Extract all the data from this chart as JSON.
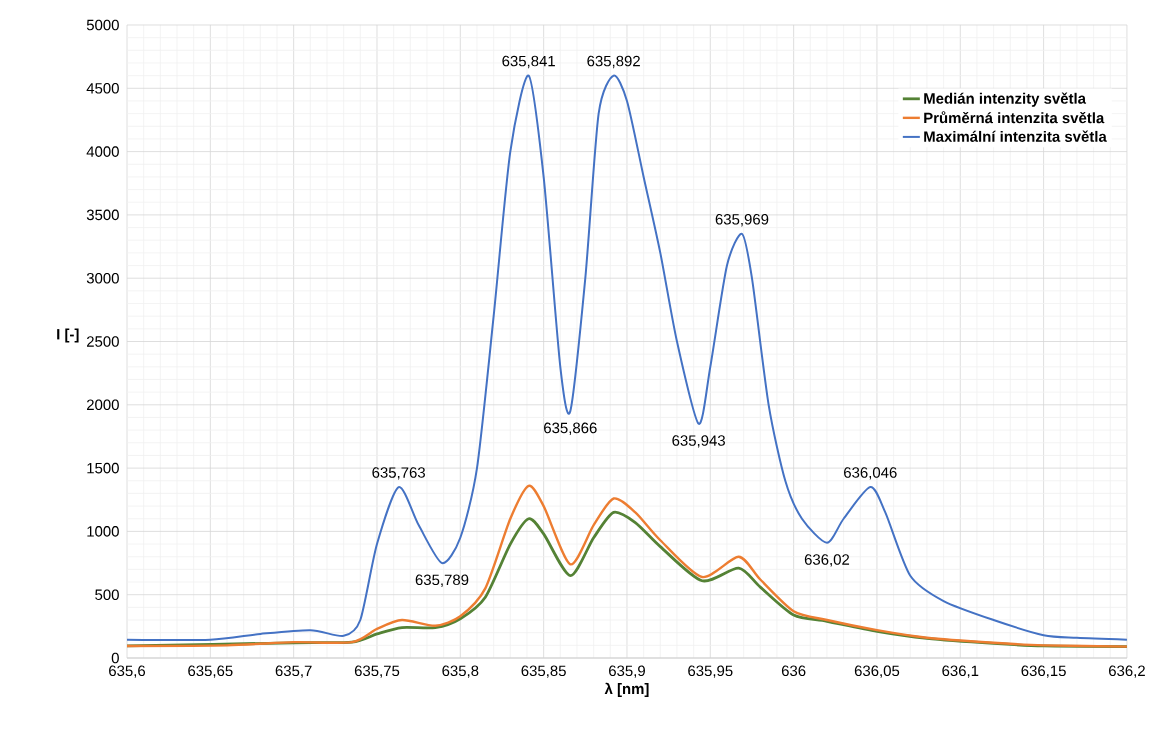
{
  "chart_data": {
    "type": "line",
    "xlabel": "λ [nm]",
    "ylabel": "I [-]",
    "xlim": [
      635.6,
      636.2
    ],
    "xticks": [
      {
        "value": 635.6,
        "label": "635,6"
      },
      {
        "value": 635.65,
        "label": "635,65"
      },
      {
        "value": 635.7,
        "label": "635,7"
      },
      {
        "value": 635.75,
        "label": "635,75"
      },
      {
        "value": 635.8,
        "label": "635,8"
      },
      {
        "value": 635.85,
        "label": "635,85"
      },
      {
        "value": 635.9,
        "label": "635,9"
      },
      {
        "value": 635.95,
        "label": "635,95"
      },
      {
        "value": 636,
        "label": "636"
      },
      {
        "value": 636.05,
        "label": "636,05"
      },
      {
        "value": 636.1,
        "label": "636,1"
      },
      {
        "value": 636.15,
        "label": "636,15"
      },
      {
        "value": 636.2,
        "label": "636,2"
      }
    ],
    "ylim": [
      0,
      5000
    ],
    "yticks": [
      0,
      500,
      1000,
      1500,
      2000,
      2500,
      3000,
      3500,
      4000,
      4500,
      5000
    ],
    "grid": true,
    "legend": "top right",
    "marker": "none",
    "line_style": "solid",
    "series": [
      {
        "name": "Medián intenzity světla",
        "color": "#548235",
        "x": [
          635.6,
          635.7,
          635.735,
          635.75,
          635.765,
          635.785,
          635.8,
          635.815,
          635.83,
          635.841,
          635.85,
          635.866,
          635.88,
          635.892,
          635.905,
          635.92,
          635.945,
          635.967,
          635.98,
          636.0,
          636.02,
          636.05,
          636.08,
          636.12,
          636.15,
          636.2
        ],
        "values": [
          95,
          120,
          125,
          190,
          240,
          240,
          310,
          480,
          900,
          1100,
          980,
          650,
          950,
          1150,
          1070,
          880,
          610,
          710,
          560,
          340,
          290,
          210,
          155,
          115,
          95,
          90
        ]
      },
      {
        "name": "Průměrná intenzita světla",
        "color": "#ed7d31",
        "x": [
          635.6,
          635.66,
          635.7,
          635.735,
          635.75,
          635.765,
          635.785,
          635.8,
          635.815,
          635.83,
          635.841,
          635.85,
          635.866,
          635.88,
          635.892,
          635.905,
          635.92,
          635.945,
          635.967,
          635.98,
          636.0,
          636.02,
          636.05,
          636.08,
          636.12,
          636.15,
          636.2
        ],
        "values": [
          95,
          100,
          125,
          125,
          230,
          300,
          255,
          330,
          550,
          1100,
          1360,
          1200,
          740,
          1050,
          1260,
          1150,
          930,
          640,
          800,
          620,
          370,
          300,
          220,
          160,
          120,
          100,
          90
        ]
      },
      {
        "name": "Maximální intenzita světla",
        "color": "#4472c4",
        "x": [
          635.6,
          635.65,
          635.68,
          635.71,
          635.73,
          635.74,
          635.75,
          635.763,
          635.775,
          635.789,
          635.8,
          635.81,
          635.82,
          635.83,
          635.841,
          635.85,
          635.86,
          635.866,
          635.875,
          635.883,
          635.892,
          635.9,
          635.91,
          635.92,
          635.93,
          635.943,
          635.95,
          635.96,
          635.969,
          635.975,
          635.985,
          635.995,
          636.005,
          636.02,
          636.03,
          636.046,
          636.055,
          636.07,
          636.09,
          636.12,
          636.15,
          636.17,
          636.2
        ],
        "values": [
          145,
          145,
          190,
          220,
          175,
          300,
          900,
          1350,
          1050,
          750,
          950,
          1500,
          2700,
          4000,
          4600,
          3800,
          2300,
          1950,
          3000,
          4300,
          4600,
          4400,
          3800,
          3200,
          2500,
          1850,
          2300,
          3100,
          3350,
          3000,
          2000,
          1400,
          1100,
          910,
          1100,
          1350,
          1150,
          650,
          450,
          300,
          180,
          160,
          145
        ]
      }
    ],
    "annotations": [
      {
        "text": "635,763",
        "x": 635.763,
        "y": 1350
      },
      {
        "text": "635,789",
        "x": 635.789,
        "y": 750
      },
      {
        "text": "635,841",
        "x": 635.841,
        "y": 4600
      },
      {
        "text": "635,866",
        "x": 635.866,
        "y": 1950
      },
      {
        "text": "635,892",
        "x": 635.892,
        "y": 4600
      },
      {
        "text": "635,943",
        "x": 635.943,
        "y": 1850
      },
      {
        "text": "635,969",
        "x": 635.969,
        "y": 3350
      },
      {
        "text": "636,02",
        "x": 636.02,
        "y": 910
      },
      {
        "text": "636,046",
        "x": 636.046,
        "y": 1350
      }
    ]
  }
}
